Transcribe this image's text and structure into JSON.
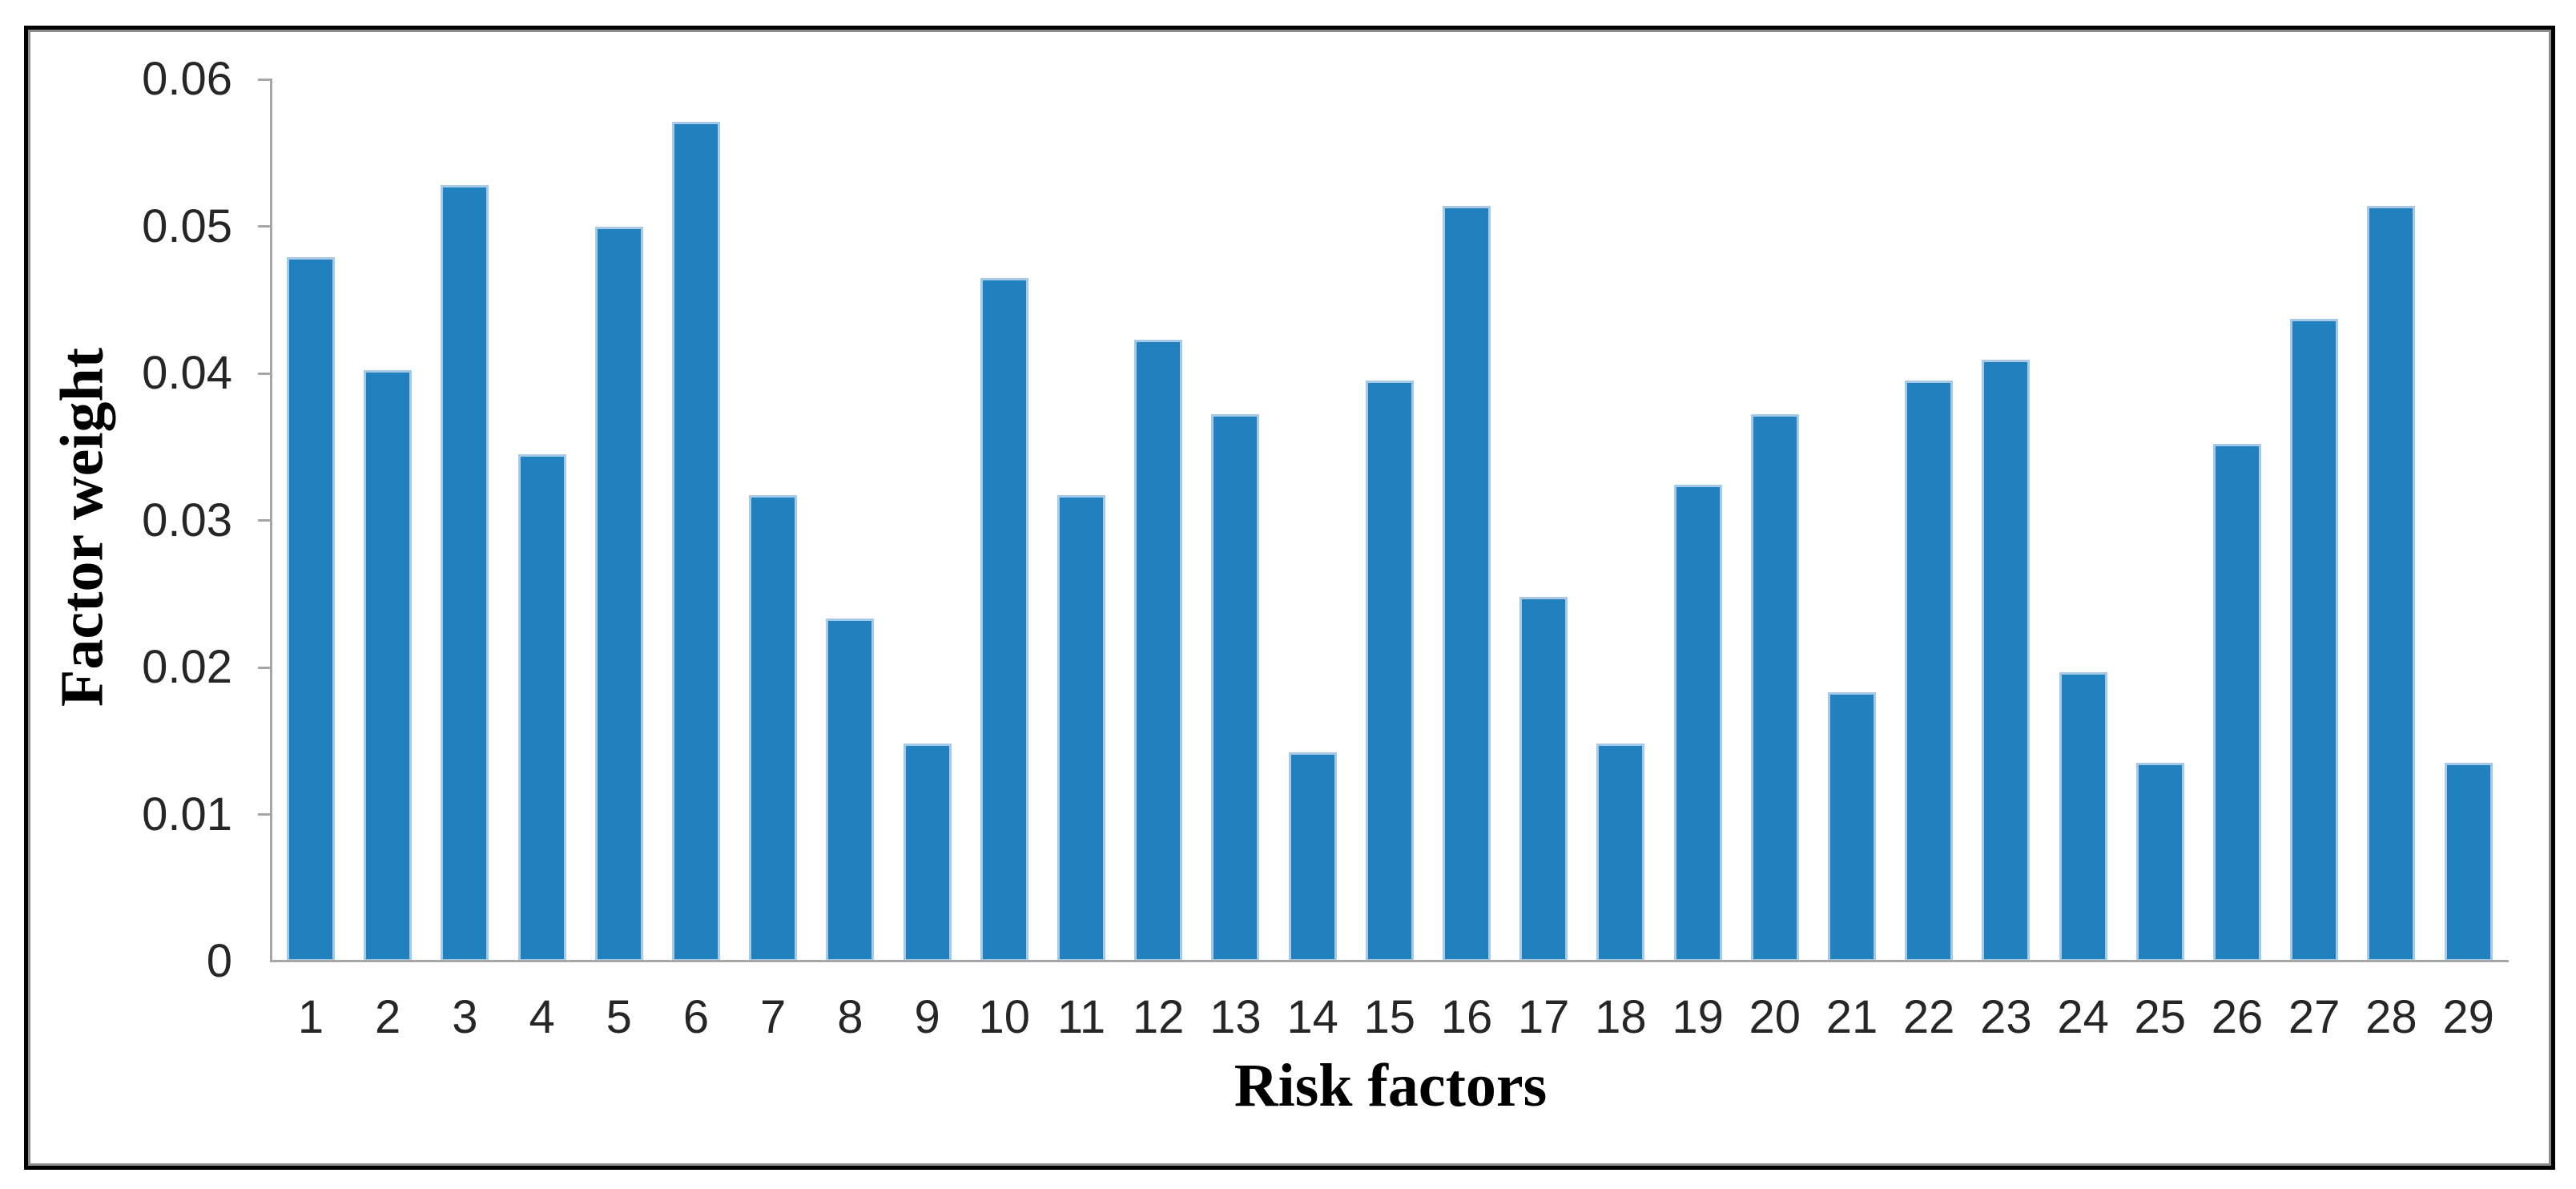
{
  "chart_data": {
    "type": "bar",
    "title": "",
    "xlabel": "Risk factors",
    "ylabel": "Factor weight",
    "categories": [
      "1",
      "2",
      "3",
      "4",
      "5",
      "6",
      "7",
      "8",
      "9",
      "10",
      "11",
      "12",
      "13",
      "14",
      "15",
      "16",
      "17",
      "18",
      "19",
      "20",
      "21",
      "22",
      "23",
      "24",
      "25",
      "26",
      "27",
      "28",
      "29"
    ],
    "values": [
      0.0479,
      0.0402,
      0.0528,
      0.0345,
      0.05,
      0.0571,
      0.0317,
      0.0233,
      0.0148,
      0.0465,
      0.0317,
      0.0423,
      0.0372,
      0.0142,
      0.0395,
      0.0514,
      0.0248,
      0.0148,
      0.0324,
      0.0372,
      0.0183,
      0.0395,
      0.0409,
      0.0197,
      0.0135,
      0.0352,
      0.0437,
      0.0514,
      0.0135
    ],
    "ylim": [
      0,
      0.06
    ],
    "y_tick_labels": [
      "0.06",
      "0.05",
      "0.04",
      "0.03",
      "0.02",
      "0.01",
      "0"
    ],
    "y_tick_values": [
      0.06,
      0.05,
      0.04,
      0.03,
      0.02,
      0.01,
      0
    ],
    "grid": "off",
    "legend": "none",
    "bar_fill_color": "#2181be",
    "bar_edge_color": "#a6c9e8",
    "axis_line_color": "#a6a6a6",
    "tick_text_color": "#262626",
    "title_text_color": "#000000",
    "frame_border_color": "#000000"
  }
}
